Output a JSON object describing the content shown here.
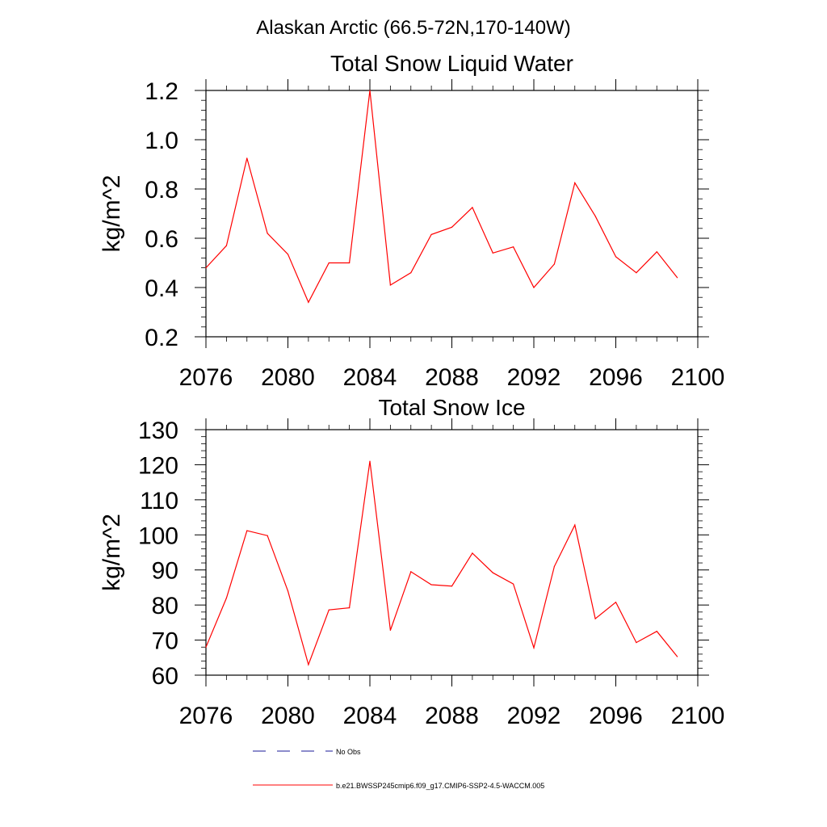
{
  "figure": {
    "suptitle": "Alaskan Arctic (66.5-72N,170-140W)"
  },
  "chart_data": [
    {
      "type": "line",
      "title": "Total Snow Liquid Water",
      "xlabel": "",
      "ylabel": "kg/m^2",
      "xlim": [
        2076,
        2100
      ],
      "ylim": [
        0.2,
        1.2
      ],
      "xticks": [
        2076,
        2080,
        2084,
        2088,
        2092,
        2096,
        2100
      ],
      "yticks": [
        0.2,
        0.4,
        0.6,
        0.8,
        1.0,
        1.2
      ],
      "ytick_labels": [
        "0.2",
        "0.4",
        "0.6",
        "0.8",
        "1.0",
        "1.2"
      ],
      "x": [
        2076,
        2077,
        2078,
        2079,
        2080,
        2081,
        2082,
        2083,
        2084,
        2085,
        2086,
        2087,
        2088,
        2089,
        2090,
        2091,
        2092,
        2093,
        2094,
        2095,
        2096,
        2097,
        2098,
        2099
      ],
      "series": [
        {
          "name": "b.e21.BWSSP245cmip6.f09_g17.CMIP6-SSP2-4.5-WACCM.005",
          "color": "#ff0000",
          "values": [
            0.48,
            0.57,
            0.925,
            0.62,
            0.535,
            0.34,
            0.5,
            0.5,
            1.2,
            0.41,
            0.46,
            0.615,
            0.645,
            0.725,
            0.54,
            0.565,
            0.4,
            0.495,
            0.825,
            0.69,
            0.525,
            0.46,
            0.545,
            0.44
          ]
        }
      ],
      "grid": false
    },
    {
      "type": "line",
      "title": "Total Snow Ice",
      "xlabel": "",
      "ylabel": "kg/m^2",
      "xlim": [
        2076,
        2100
      ],
      "ylim": [
        60,
        130
      ],
      "xticks": [
        2076,
        2080,
        2084,
        2088,
        2092,
        2096,
        2100
      ],
      "yticks": [
        60,
        70,
        80,
        90,
        100,
        110,
        120,
        130
      ],
      "ytick_labels": [
        "60",
        "70",
        "80",
        "90",
        "100",
        "110",
        "120",
        "130"
      ],
      "x": [
        2076,
        2077,
        2078,
        2079,
        2080,
        2081,
        2082,
        2083,
        2084,
        2085,
        2086,
        2087,
        2088,
        2089,
        2090,
        2091,
        2092,
        2093,
        2094,
        2095,
        2096,
        2097,
        2098,
        2099
      ],
      "series": [
        {
          "name": "b.e21.BWSSP245cmip6.f09_g17.CMIP6-SSP2-4.5-WACCM.005",
          "color": "#ff0000",
          "values": [
            68,
            82,
            101.2,
            99.8,
            84,
            63,
            78.6,
            79.2,
            121,
            72.8,
            89.5,
            85.8,
            85.4,
            94.8,
            89.2,
            86,
            67.8,
            91,
            102.8,
            76.1,
            80.8,
            69.3,
            72.5,
            65.3
          ]
        }
      ],
      "grid": false
    }
  ],
  "legend": {
    "placement": "bottom",
    "items": [
      {
        "label": "No Obs",
        "color": "#1a1a99",
        "dash": "dashed"
      },
      {
        "label": "b.e21.BWSSP245cmip6.f09_g17.CMIP6-SSP2-4.5-WACCM.005",
        "color": "#ff0000",
        "dash": "solid"
      }
    ]
  }
}
